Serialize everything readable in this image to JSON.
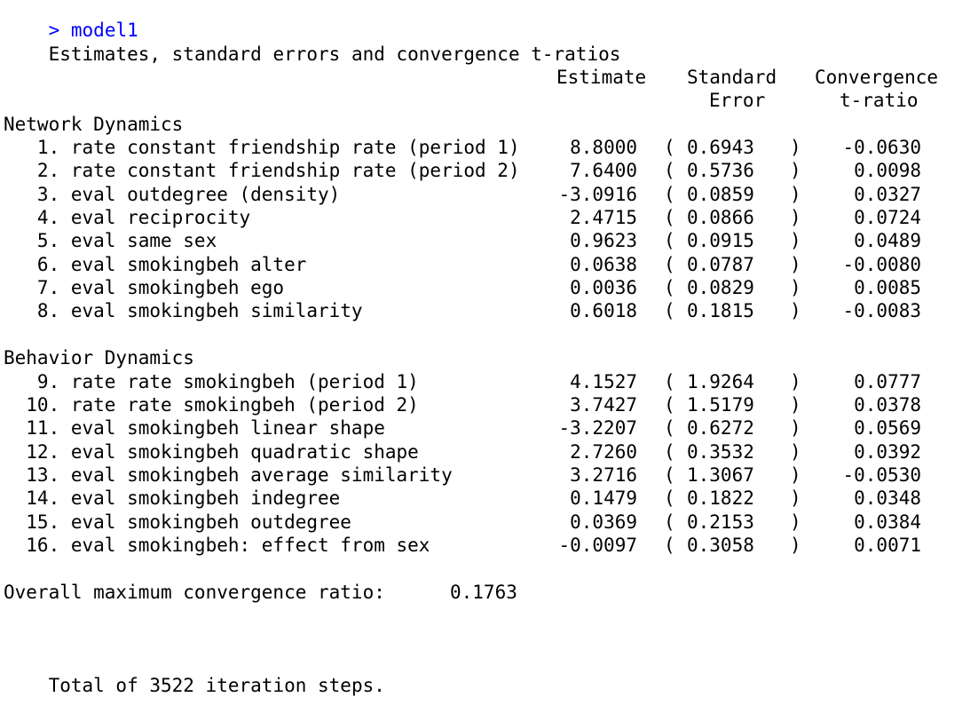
{
  "prompt": {
    "symbol": ">",
    "command": "model1"
  },
  "title": "Estimates, standard errors and convergence t-ratios",
  "headers": {
    "estimate": "Estimate",
    "se_line1": "Standard",
    "se_line2": "Error",
    "t_line1": "Convergence",
    "t_line2": "t-ratio"
  },
  "sections": [
    {
      "title": "Network Dynamics",
      "rows": [
        {
          "label": "   1. rate constant friendship rate (period 1)",
          "estimate": "8.8000",
          "se": "0.6943",
          "t": "-0.0630"
        },
        {
          "label": "   2. rate constant friendship rate (period 2)",
          "estimate": "7.6400",
          "se": "0.5736",
          "t": "0.0098"
        },
        {
          "label": "   3. eval outdegree (density)",
          "estimate": "-3.0916",
          "se": "0.0859",
          "t": "0.0327"
        },
        {
          "label": "   4. eval reciprocity",
          "estimate": "2.4715",
          "se": "0.0866",
          "t": "0.0724"
        },
        {
          "label": "   5. eval same sex",
          "estimate": "0.9623",
          "se": "0.0915",
          "t": "0.0489"
        },
        {
          "label": "   6. eval smokingbeh alter",
          "estimate": "0.0638",
          "se": "0.0787",
          "t": "-0.0080"
        },
        {
          "label": "   7. eval smokingbeh ego",
          "estimate": "0.0036",
          "se": "0.0829",
          "t": "0.0085"
        },
        {
          "label": "   8. eval smokingbeh similarity",
          "estimate": "0.6018",
          "se": "0.1815",
          "t": "-0.0083"
        }
      ]
    },
    {
      "title": "Behavior Dynamics",
      "rows": [
        {
          "label": "   9. rate rate smokingbeh (period 1)",
          "estimate": "4.1527",
          "se": "1.9264",
          "t": "0.0777"
        },
        {
          "label": "  10. rate rate smokingbeh (period 2)",
          "estimate": "3.7427",
          "se": "1.5179",
          "t": "0.0378"
        },
        {
          "label": "  11. eval smokingbeh linear shape",
          "estimate": "-3.2207",
          "se": "0.6272",
          "t": "0.0569"
        },
        {
          "label": "  12. eval smokingbeh quadratic shape",
          "estimate": "2.7260",
          "se": "0.3532",
          "t": "0.0392"
        },
        {
          "label": "  13. eval smokingbeh average similarity",
          "estimate": "3.2716",
          "se": "1.3067",
          "t": "-0.0530"
        },
        {
          "label": "  14. eval smokingbeh indegree",
          "estimate": "0.1479",
          "se": "0.1822",
          "t": "0.0348"
        },
        {
          "label": "  15. eval smokingbeh outdegree",
          "estimate": "0.0369",
          "se": "0.2153",
          "t": "0.0384"
        },
        {
          "label": "  16. eval smokingbeh: effect from sex",
          "estimate": "-0.0097",
          "se": "0.3058",
          "t": "0.0071"
        }
      ]
    }
  ],
  "paren_open": "(",
  "paren_close": ")",
  "overall": {
    "label": "Overall maximum convergence ratio:",
    "value": "0.1763"
  },
  "total": "Total of 3522 iteration steps.",
  "colors": {
    "prompt": "#0000ff",
    "text": "#000000",
    "background": "#ffffff"
  }
}
